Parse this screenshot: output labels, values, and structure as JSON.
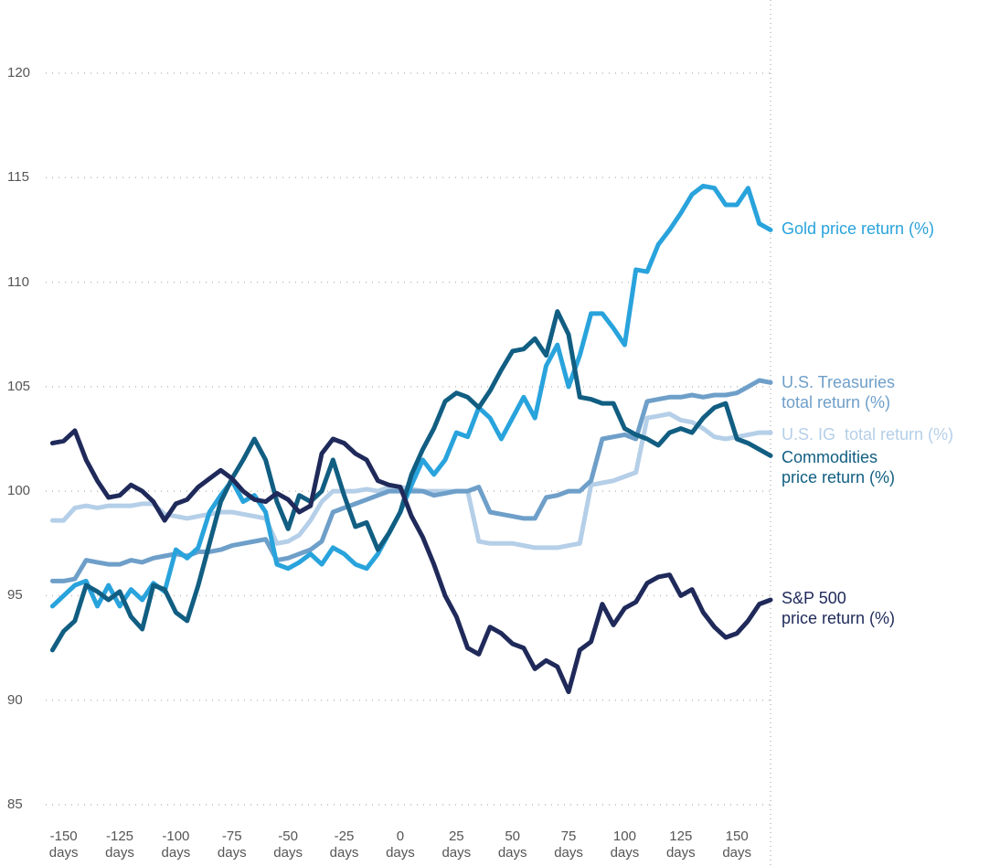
{
  "chart_data": {
    "type": "line",
    "x": [
      -155,
      -150,
      -145,
      -140,
      -135,
      -130,
      -125,
      -120,
      -115,
      -110,
      -105,
      -100,
      -95,
      -90,
      -85,
      -80,
      -75,
      -70,
      -65,
      -60,
      -55,
      -50,
      -45,
      -40,
      -35,
      -30,
      -25,
      -20,
      -15,
      -10,
      -5,
      0,
      5,
      10,
      15,
      20,
      25,
      30,
      35,
      40,
      45,
      50,
      55,
      60,
      65,
      70,
      75,
      80,
      85,
      90,
      95,
      100,
      105,
      110,
      115,
      120,
      125,
      130,
      135,
      140,
      145,
      150,
      155,
      160,
      165
    ],
    "series": [
      {
        "name": "U.S. IG  total return (%)",
        "color": "#b5cfe8",
        "values": [
          98.6,
          98.6,
          99.2,
          99.3,
          99.2,
          99.3,
          99.3,
          99.3,
          99.4,
          99.4,
          98.9,
          98.8,
          98.7,
          98.8,
          98.9,
          99,
          99,
          98.9,
          98.8,
          98.7,
          97.5,
          97.6,
          97.9,
          98.6,
          99.5,
          100,
          100,
          100,
          100.1,
          100,
          100.2,
          100.2,
          100.1,
          100,
          100,
          100,
          100,
          100,
          97.6,
          97.5,
          97.5,
          97.5,
          97.4,
          97.3,
          97.3,
          97.3,
          97.4,
          97.5,
          100.3,
          100.4,
          100.5,
          100.7,
          100.9,
          103.5,
          103.6,
          103.7,
          103.4,
          103.3,
          103,
          102.6,
          102.5,
          102.6,
          102.7,
          102.8,
          102.8
        ]
      },
      {
        "name": "U.S. Treasuries total return (%)",
        "color": "#6e9fc9",
        "values": [
          95.7,
          95.7,
          95.8,
          96.7,
          96.6,
          96.5,
          96.5,
          96.7,
          96.6,
          96.8,
          96.9,
          97,
          96.9,
          97.1,
          97.1,
          97.2,
          97.4,
          97.5,
          97.6,
          97.7,
          96.7,
          96.8,
          97,
          97.2,
          97.6,
          99,
          99.2,
          99.4,
          99.6,
          99.8,
          100,
          100,
          100,
          100,
          99.8,
          99.9,
          100,
          100,
          100.2,
          99,
          98.9,
          98.8,
          98.7,
          98.7,
          99.7,
          99.8,
          100,
          100,
          100.5,
          102.5,
          102.6,
          102.7,
          102.5,
          104.3,
          104.4,
          104.5,
          104.5,
          104.6,
          104.5,
          104.6,
          104.6,
          104.7,
          105,
          105.3,
          105.2
        ]
      },
      {
        "name": "Gold price return (%)",
        "color": "#29a3dc",
        "values": [
          94.5,
          95,
          95.5,
          95.7,
          94.5,
          95.5,
          94.5,
          95.3,
          94.8,
          95.6,
          95.2,
          97.2,
          96.8,
          97.3,
          99,
          99.8,
          100.5,
          99.5,
          99.8,
          99,
          96.5,
          96.3,
          96.6,
          97,
          96.5,
          97.3,
          97,
          96.5,
          96.3,
          97,
          98,
          99,
          100.3,
          101.5,
          100.8,
          101.5,
          102.8,
          102.6,
          104,
          103.5,
          102.5,
          103.5,
          104.5,
          103.5,
          106,
          107,
          105,
          106.5,
          108.5,
          108.5,
          107.8,
          107,
          110.6,
          110.5,
          111.8,
          112.5,
          113.3,
          114.2,
          114.6,
          114.5,
          113.7,
          113.7,
          114.5,
          112.8,
          112.5
        ]
      },
      {
        "name": "Commodities price return (%)",
        "color": "#115e82",
        "values": [
          92.4,
          93.3,
          93.8,
          95.5,
          95.2,
          94.8,
          95.2,
          94,
          93.4,
          95.5,
          95.3,
          94.2,
          93.8,
          95.5,
          97.5,
          99.5,
          100.6,
          101.5,
          102.5,
          101.5,
          99.5,
          98.2,
          99.8,
          99.5,
          100,
          101.5,
          99.8,
          98.3,
          98.5,
          97.2,
          98,
          99,
          100.8,
          102,
          103,
          104.3,
          104.7,
          104.5,
          104,
          104.8,
          105.8,
          106.7,
          106.8,
          107.3,
          106.5,
          108.6,
          107.5,
          104.5,
          104.4,
          104.2,
          104.2,
          103,
          102.7,
          102.5,
          102.2,
          102.8,
          103,
          102.8,
          103.5,
          104,
          104.2,
          102.5,
          102.3,
          102,
          101.7
        ]
      },
      {
        "name": "S&P 500 price return (%)",
        "color": "#1f2a5a",
        "values": [
          102.3,
          102.4,
          102.9,
          101.5,
          100.5,
          99.7,
          99.8,
          100.3,
          100,
          99.5,
          98.6,
          99.4,
          99.6,
          100.2,
          100.6,
          101,
          100.6,
          100,
          99.6,
          99.5,
          99.9,
          99.6,
          99,
          99.3,
          101.8,
          102.5,
          102.3,
          101.8,
          101.5,
          100.5,
          100.3,
          100.2,
          98.8,
          97.8,
          96.5,
          95,
          94,
          92.5,
          92.2,
          93.5,
          93.2,
          92.7,
          92.5,
          91.5,
          91.9,
          91.6,
          90.4,
          92.4,
          92.8,
          94.6,
          93.6,
          94.4,
          94.7,
          95.6,
          95.9,
          96,
          95,
          95.3,
          94.2,
          93.5,
          93,
          93.2,
          93.8,
          94.6,
          94.8
        ]
      }
    ],
    "xlim": [
      -158,
      165
    ],
    "xticks": [
      {
        "value": -150,
        "label": "-150 days"
      },
      {
        "value": -125,
        "label": "-125 days"
      },
      {
        "value": -100,
        "label": "-100 days"
      },
      {
        "value": -75,
        "label": "-75 days"
      },
      {
        "value": -50,
        "label": "-50 days"
      },
      {
        "value": -25,
        "label": "-25 days"
      },
      {
        "value": 0,
        "label": "0 days"
      },
      {
        "value": 25,
        "label": "25 days"
      },
      {
        "value": 50,
        "label": "50 days"
      },
      {
        "value": 75,
        "label": "75 days"
      },
      {
        "value": 100,
        "label": "100 days"
      },
      {
        "value": 125,
        "label": "125 days"
      },
      {
        "value": 150,
        "label": "150 days"
      }
    ],
    "ylim": [
      83,
      123
    ],
    "yticks": [
      85,
      90,
      95,
      100,
      105,
      110,
      115,
      120
    ],
    "grid": true
  }
}
